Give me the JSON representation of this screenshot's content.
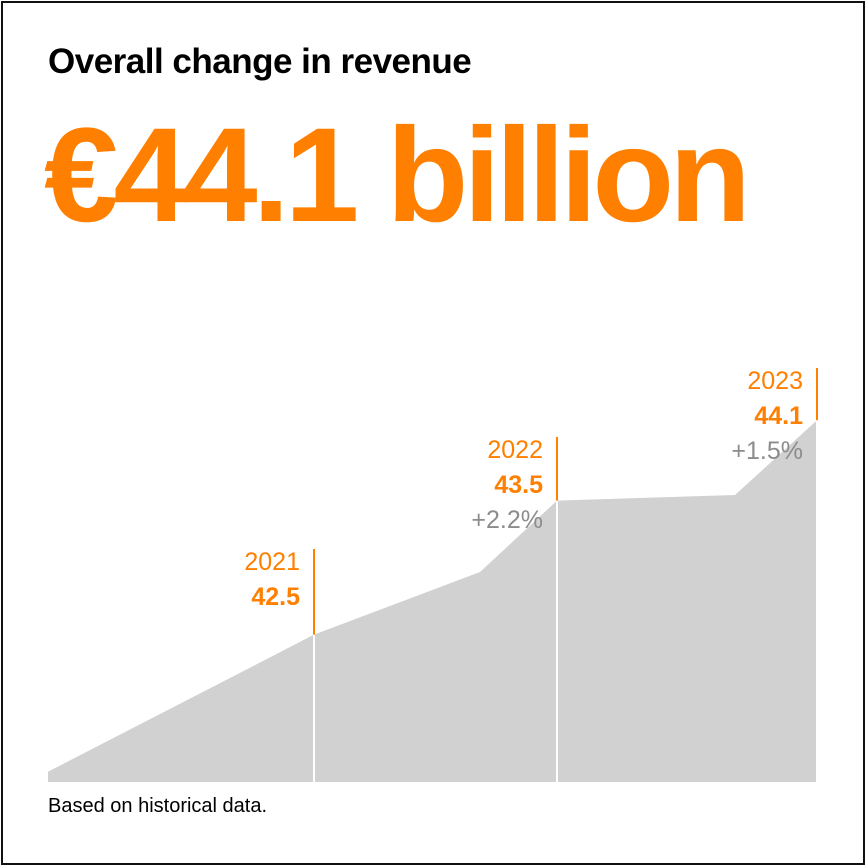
{
  "title": "Overall change in revenue",
  "headline": "€44.1 billion",
  "footnote": "Based on historical data.",
  "colors": {
    "accent": "#ff7f00",
    "area": "#d1d1d1",
    "change_text": "#8c8c8c",
    "frame": "#111111"
  },
  "chart_data": {
    "type": "area",
    "x": [
      "2021",
      "2022",
      "2023"
    ],
    "series": [
      {
        "values": [
          42.5,
          43.5,
          44.1
        ]
      }
    ],
    "annotations": [
      {
        "year": "2021",
        "value": "42.5",
        "change": ""
      },
      {
        "year": "2022",
        "value": "43.5",
        "change": "+2.2%"
      },
      {
        "year": "2023",
        "value": "44.1",
        "change": "+1.5%"
      }
    ],
    "ylim": [
      41.4,
      44.4
    ],
    "grid": false,
    "axes_visible": false
  }
}
